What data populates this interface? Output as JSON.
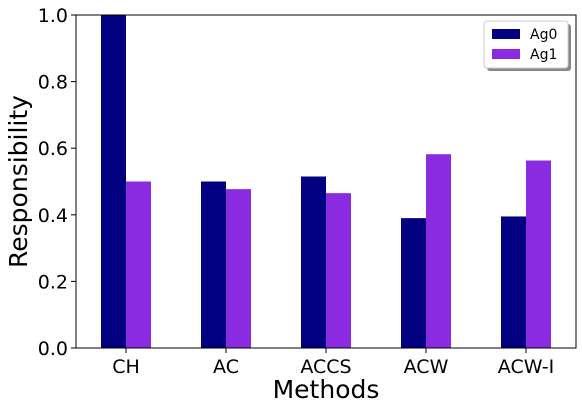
{
  "chart_data": {
    "type": "bar",
    "categories": [
      "CH",
      "AC",
      "ACCS",
      "ACW",
      "ACW-I"
    ],
    "series": [
      {
        "name": "Ag0",
        "color": "#000080",
        "values": [
          1.0,
          0.5,
          0.515,
          0.39,
          0.395
        ]
      },
      {
        "name": "Ag1",
        "color": "#8a2be2",
        "values": [
          0.5,
          0.477,
          0.465,
          0.582,
          0.563
        ]
      }
    ],
    "xlabel": "Methods",
    "ylabel": "Responsibility",
    "ylim": [
      0,
      1.0
    ],
    "yticks": [
      "0.0",
      "0.2",
      "0.4",
      "0.6",
      "0.8",
      "1.0"
    ],
    "legend_position": "top-right",
    "grid": false
  }
}
